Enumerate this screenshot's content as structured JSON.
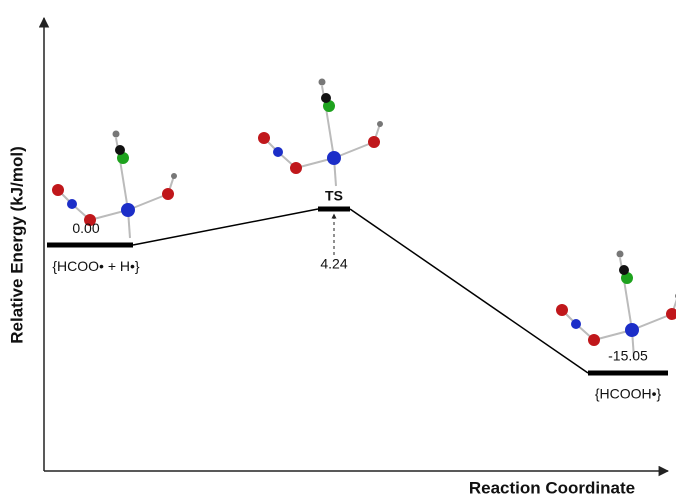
{
  "chart_data": {
    "type": "energy_profile",
    "y_label": "Relative Energy (kJ/mol)",
    "x_label": "Reaction Coordinate",
    "categories": [
      "{HCOO• + H•}",
      "TS",
      "{HCOOH•}"
    ],
    "values": [
      0,
      4.24,
      -15.05
    ],
    "value_labels": [
      "0.00",
      "4.24",
      "-15.05"
    ],
    "color": "#000000"
  }
}
